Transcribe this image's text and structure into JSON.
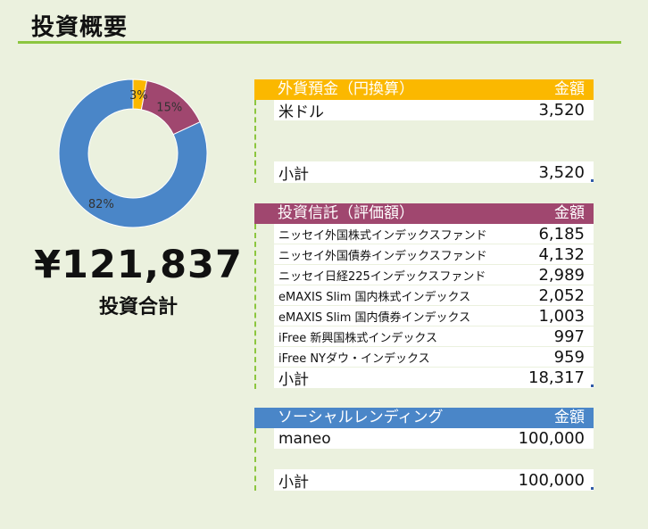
{
  "page": {
    "title": "投資概要",
    "total_amount": "¥121,837",
    "total_label": "投資合計"
  },
  "chart_data": {
    "type": "pie",
    "donut": true,
    "categories": [
      "外貨預金（円換算）",
      "投資信託（評価額）",
      "ソーシャルレンディング"
    ],
    "values": [
      3,
      15,
      82
    ],
    "labels": [
      "3%",
      "15%",
      "82%"
    ],
    "colors": [
      "#fbb800",
      "#a0476f",
      "#4a86c8"
    ]
  },
  "sections": {
    "fx": {
      "title": "外貨預金（円換算）",
      "amount_header": "金額",
      "color": "#fbb800",
      "items": [
        {
          "label": "米ドル",
          "value": "3,520"
        }
      ],
      "subtotal_label": "小計",
      "subtotal": "3,520"
    },
    "fund": {
      "title": "投資信託（評価額）",
      "amount_header": "金額",
      "color": "#a0476f",
      "items": [
        {
          "label": "ニッセイ外国株式インデックスファンド",
          "value": "6,185"
        },
        {
          "label": "ニッセイ外国債券インデックスファンド",
          "value": "4,132"
        },
        {
          "label": "ニッセイ日経225インデックスファンド",
          "value": "2,989"
        },
        {
          "label": "eMAXIS Slim 国内株式インデックス",
          "value": "2,052"
        },
        {
          "label": "eMAXIS Slim 国内債券インデックス",
          "value": "1,003"
        },
        {
          "label": "iFree 新興国株式インデックス",
          "value": "997"
        },
        {
          "label": "iFree NYダウ・インデックス",
          "value": "959"
        }
      ],
      "subtotal_label": "小計",
      "subtotal": "18,317"
    },
    "lending": {
      "title": "ソーシャルレンディング",
      "amount_header": "金額",
      "color": "#4a86c8",
      "items": [
        {
          "label": "maneo",
          "value": "100,000"
        }
      ],
      "subtotal_label": "小計",
      "subtotal": "100,000"
    }
  }
}
